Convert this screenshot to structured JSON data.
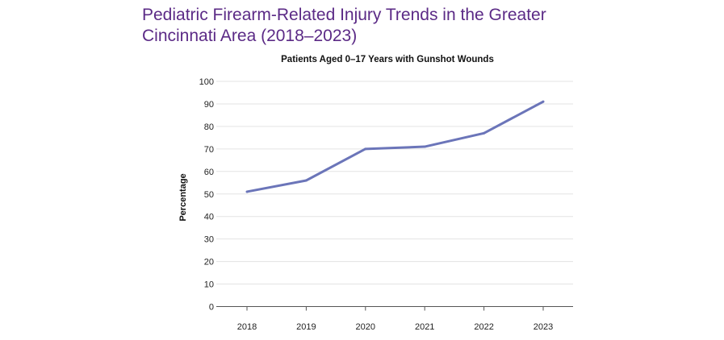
{
  "title": "Pediatric Firearm-Related Injury Trends in the Greater Cincinnati Area (2018–2023)",
  "chart_data": {
    "type": "line",
    "title": "Patients Aged 0–17 Years with Gunshot Wounds",
    "xlabel": "",
    "ylabel": "Percentage",
    "categories": [
      "2018",
      "2019",
      "2020",
      "2021",
      "2022",
      "2023"
    ],
    "values": [
      51,
      56,
      70,
      71,
      77,
      91
    ],
    "ylim": [
      0,
      100
    ],
    "yticks": [
      0,
      10,
      20,
      30,
      40,
      50,
      60,
      70,
      80,
      90,
      100
    ],
    "grid": true,
    "line_color": "#6b75b9",
    "title_color": "#5b2a86"
  }
}
